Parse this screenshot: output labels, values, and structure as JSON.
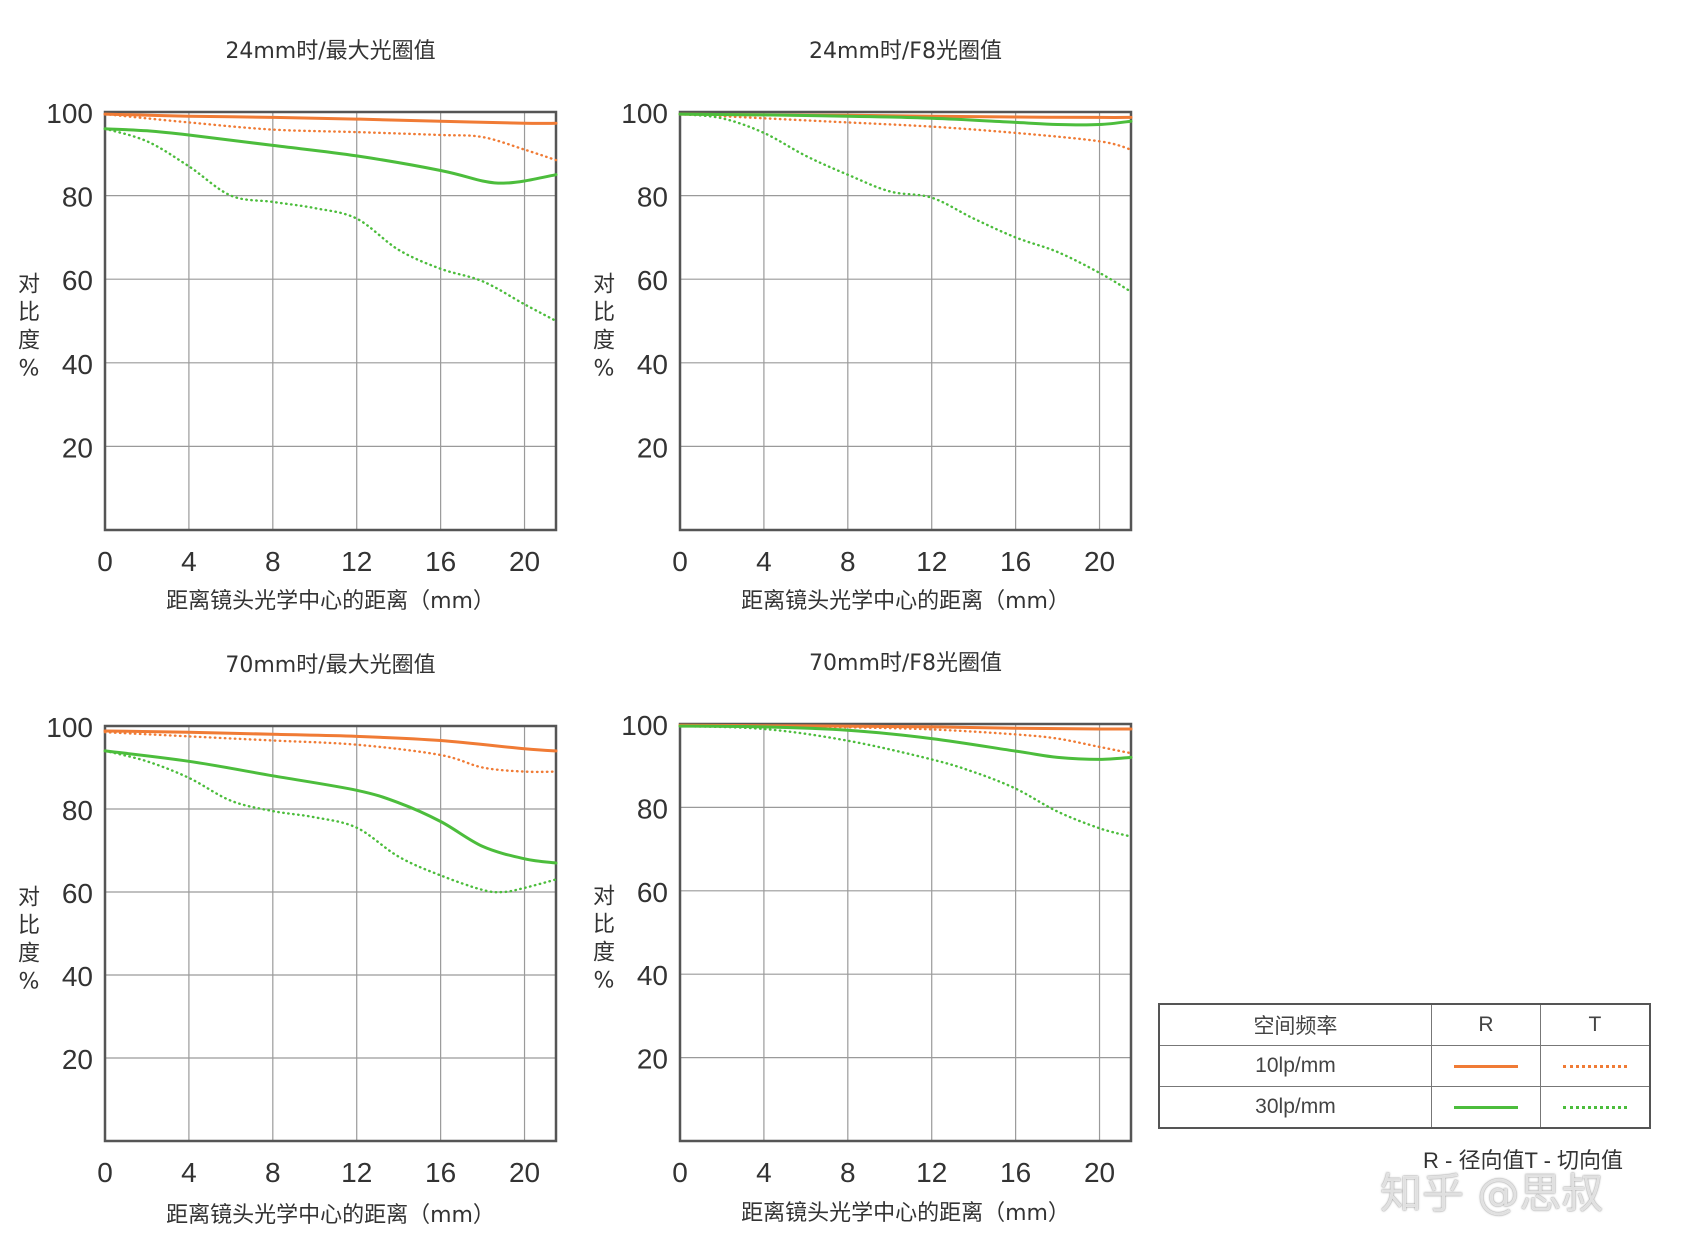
{
  "colors": {
    "10lp": "#f07b35",
    "30lp": "#4cbd3c",
    "frame": "#555555",
    "grid": "#9a9a9a"
  },
  "legend": {
    "header": {
      "freq": "空间频率",
      "r": "R",
      "t": "T"
    },
    "rows": [
      {
        "label": "10lp/mm",
        "color_key": "10lp"
      },
      {
        "label": "30lp/mm",
        "color_key": "30lp"
      }
    ]
  },
  "note": "R - 径向值T - 切向值",
  "watermark": "知乎 @思叔",
  "chart_data": [
    {
      "type": "line",
      "title": "24mm时/最大光圈值",
      "xlabel": "距离镜头光学中心的距离（mm）",
      "ylabel": "对比度%",
      "xlim": [
        0,
        21.5
      ],
      "ylim": [
        0,
        100
      ],
      "xticks": [
        0,
        4,
        8,
        12,
        16,
        20
      ],
      "yticks": [
        20,
        40,
        60,
        80,
        100
      ],
      "grid": true,
      "series": [
        {
          "name": "10lp/mm R",
          "color_key": "10lp",
          "style": "solid",
          "x": [
            0,
            4,
            8,
            12,
            16,
            20,
            21.5
          ],
          "y": [
            99.5,
            99,
            98.7,
            98.3,
            97.8,
            97.3,
            97.3
          ]
        },
        {
          "name": "10lp/mm T",
          "color_key": "10lp",
          "style": "dotted",
          "x": [
            0,
            4,
            8,
            12,
            16,
            18,
            20,
            21.5
          ],
          "y": [
            99.5,
            97.5,
            95.8,
            95.2,
            94.5,
            94,
            91,
            88.5
          ]
        },
        {
          "name": "30lp/mm R",
          "color_key": "30lp",
          "style": "solid",
          "x": [
            0,
            2,
            4,
            8,
            12,
            16,
            18,
            19,
            20,
            21.5
          ],
          "y": [
            96,
            95.5,
            94.5,
            92,
            89.5,
            86,
            83.5,
            83,
            83.5,
            85
          ]
        },
        {
          "name": "30lp/mm T",
          "color_key": "30lp",
          "style": "dotted",
          "x": [
            0,
            2,
            4,
            6,
            8,
            10,
            12,
            14,
            16,
            18,
            20,
            21.5
          ],
          "y": [
            96,
            93,
            87,
            80,
            78.5,
            77,
            74.5,
            67,
            62.5,
            59.5,
            54,
            50
          ]
        }
      ]
    },
    {
      "type": "line",
      "title": "24mm时/F8光圈值",
      "xlabel": "距离镜头光学中心的距离（mm）",
      "ylabel": "对比度%",
      "xlim": [
        0,
        21.5
      ],
      "ylim": [
        0,
        100
      ],
      "xticks": [
        0,
        4,
        8,
        12,
        16,
        20
      ],
      "yticks": [
        20,
        40,
        60,
        80,
        100
      ],
      "grid": true,
      "series": [
        {
          "name": "10lp/mm R",
          "color_key": "10lp",
          "style": "solid",
          "x": [
            0,
            4,
            8,
            12,
            16,
            20,
            21.5
          ],
          "y": [
            99.5,
            99.3,
            99.2,
            99,
            98.8,
            98.7,
            98.7
          ]
        },
        {
          "name": "10lp/mm T",
          "color_key": "10lp",
          "style": "dotted",
          "x": [
            0,
            4,
            8,
            12,
            16,
            20,
            21.5
          ],
          "y": [
            99.5,
            98.5,
            97.5,
            96.5,
            95,
            93,
            91
          ]
        },
        {
          "name": "30lp/mm R",
          "color_key": "30lp",
          "style": "solid",
          "x": [
            0,
            4,
            8,
            12,
            16,
            18,
            20,
            21.5
          ],
          "y": [
            99.5,
            99.3,
            99,
            98.5,
            97.5,
            97,
            97,
            97.8
          ]
        },
        {
          "name": "30lp/mm T",
          "color_key": "30lp",
          "style": "dotted",
          "x": [
            0,
            2,
            4,
            6,
            8,
            10,
            12,
            14,
            16,
            18,
            20,
            21.5
          ],
          "y": [
            99.5,
            98.5,
            95,
            89.5,
            85,
            81,
            79.5,
            74.5,
            70,
            66.5,
            61.5,
            57
          ]
        }
      ]
    },
    {
      "type": "line",
      "title": "70mm时/最大光圈值",
      "xlabel": "距离镜头光学中心的距离（mm）",
      "ylabel": "对比度%",
      "xlim": [
        0,
        21.5
      ],
      "ylim": [
        0,
        100
      ],
      "xticks": [
        0,
        4,
        8,
        12,
        16,
        20
      ],
      "yticks": [
        20,
        40,
        60,
        80,
        100
      ],
      "grid": true,
      "series": [
        {
          "name": "10lp/mm R",
          "color_key": "10lp",
          "style": "solid",
          "x": [
            0,
            4,
            8,
            12,
            16,
            20,
            21.5
          ],
          "y": [
            98.8,
            98.5,
            98,
            97.5,
            96.5,
            94.5,
            94
          ]
        },
        {
          "name": "10lp/mm T",
          "color_key": "10lp",
          "style": "dotted",
          "x": [
            0,
            4,
            8,
            12,
            16,
            18,
            20,
            21.5
          ],
          "y": [
            98.5,
            97.5,
            96.5,
            95.5,
            93,
            90,
            89,
            89
          ]
        },
        {
          "name": "30lp/mm R",
          "color_key": "30lp",
          "style": "solid",
          "x": [
            0,
            4,
            8,
            12,
            14,
            16,
            18,
            20,
            21.5
          ],
          "y": [
            94,
            91.5,
            88,
            84.5,
            81.5,
            77,
            71,
            68,
            67
          ]
        },
        {
          "name": "30lp/mm T",
          "color_key": "30lp",
          "style": "dotted",
          "x": [
            0,
            2,
            4,
            6,
            8,
            10,
            12,
            14,
            16,
            18,
            19,
            20,
            21.5
          ],
          "y": [
            94,
            91.5,
            87.5,
            82,
            79.5,
            78,
            75.5,
            68.5,
            64,
            60.5,
            60,
            61,
            63
          ]
        }
      ]
    },
    {
      "type": "line",
      "title": "70mm时/F8光圈值",
      "xlabel": "距离镜头光学中心的距离（mm）",
      "ylabel": "对比度%",
      "xlim": [
        0,
        21.5
      ],
      "ylim": [
        0,
        100
      ],
      "xticks": [
        0,
        4,
        8,
        12,
        16,
        20
      ],
      "yticks": [
        20,
        40,
        60,
        80,
        100
      ],
      "grid": true,
      "series": [
        {
          "name": "10lp/mm R",
          "color_key": "10lp",
          "style": "solid",
          "x": [
            0,
            4,
            8,
            12,
            16,
            20,
            21.5
          ],
          "y": [
            99.7,
            99.6,
            99.5,
            99.3,
            99,
            98.8,
            98.8
          ]
        },
        {
          "name": "10lp/mm T",
          "color_key": "10lp",
          "style": "dotted",
          "x": [
            0,
            4,
            8,
            12,
            16,
            18,
            20,
            21.5
          ],
          "y": [
            99.7,
            99.5,
            99.2,
            98.7,
            97.5,
            96.5,
            94.5,
            93
          ]
        },
        {
          "name": "30lp/mm R",
          "color_key": "30lp",
          "style": "solid",
          "x": [
            0,
            4,
            8,
            12,
            16,
            18,
            20,
            21.5
          ],
          "y": [
            99.5,
            99.3,
            98.5,
            96.5,
            93.5,
            92,
            91.5,
            92
          ]
        },
        {
          "name": "30lp/mm T",
          "color_key": "30lp",
          "style": "dotted",
          "x": [
            0,
            4,
            8,
            12,
            14,
            16,
            18,
            20,
            21.5
          ],
          "y": [
            99.5,
            98.8,
            96,
            91.5,
            88.5,
            84.5,
            79,
            75,
            73
          ]
        }
      ]
    }
  ]
}
